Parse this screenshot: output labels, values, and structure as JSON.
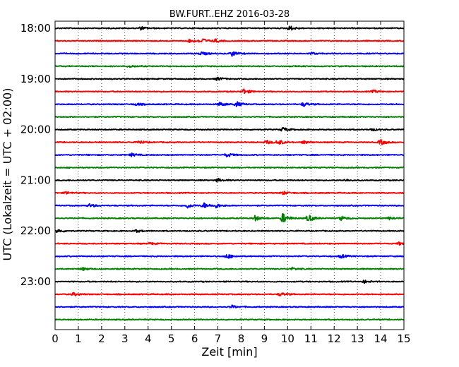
{
  "chart_data": {
    "type": "line",
    "title": "BW.FURT..EHZ 2016-03-28",
    "xlabel": "Zeit  [min]",
    "ylabel": "UTC (Lokalzeit = UTC + 02:00)",
    "xlim": [
      0,
      15
    ],
    "x_ticks": [
      "0",
      "1",
      "2",
      "3",
      "4",
      "5",
      "6",
      "7",
      "8",
      "9",
      "10",
      "11",
      "12",
      "13",
      "14",
      "15"
    ],
    "y_tick_labels": [
      "18:00",
      "19:00",
      "20:00",
      "21:00",
      "22:00",
      "23:00"
    ],
    "grid": true,
    "line_colors": [
      "#000000",
      "#ff0000",
      "#0000ff",
      "#008000"
    ],
    "traces": [
      {
        "start": "18:00",
        "color": "#000000",
        "events": [
          {
            "t": 3.7,
            "amp": 0.3
          },
          {
            "t": 10.1,
            "amp": 0.45
          }
        ]
      },
      {
        "start": "18:15",
        "color": "#ff0000",
        "events": [
          {
            "t": 5.8,
            "amp": 0.4
          },
          {
            "t": 6.3,
            "amp": 0.55
          },
          {
            "t": 6.9,
            "amp": 0.3
          }
        ]
      },
      {
        "start": "18:30",
        "color": "#0000ff",
        "events": [
          {
            "t": 6.3,
            "amp": 0.35
          },
          {
            "t": 7.6,
            "amp": 0.5
          },
          {
            "t": 11.0,
            "amp": 0.25
          }
        ]
      },
      {
        "start": "18:45",
        "color": "#008000",
        "events": [
          {
            "t": 3.2,
            "amp": 0.2
          }
        ]
      },
      {
        "start": "19:00",
        "color": "#000000",
        "events": [
          {
            "t": 7.0,
            "amp": 0.35
          }
        ]
      },
      {
        "start": "19:15",
        "color": "#ff0000",
        "events": [
          {
            "t": 8.1,
            "amp": 0.55
          },
          {
            "t": 13.7,
            "amp": 0.25
          }
        ]
      },
      {
        "start": "19:30",
        "color": "#0000ff",
        "events": [
          {
            "t": 3.5,
            "amp": 0.25
          },
          {
            "t": 7.1,
            "amp": 0.4
          },
          {
            "t": 7.8,
            "amp": 0.5
          },
          {
            "t": 10.7,
            "amp": 0.4
          }
        ]
      },
      {
        "start": "19:45",
        "color": "#008000",
        "events": []
      },
      {
        "start": "20:00",
        "color": "#000000",
        "events": [
          {
            "t": 9.8,
            "amp": 0.4
          },
          {
            "t": 13.6,
            "amp": 0.25
          }
        ]
      },
      {
        "start": "20:15",
        "color": "#ff0000",
        "events": [
          {
            "t": 3.6,
            "amp": 0.35
          },
          {
            "t": 9.1,
            "amp": 0.35
          },
          {
            "t": 9.6,
            "amp": 0.5
          },
          {
            "t": 10.7,
            "amp": 0.3
          },
          {
            "t": 14.0,
            "amp": 0.55
          }
        ]
      },
      {
        "start": "20:30",
        "color": "#0000ff",
        "events": [
          {
            "t": 3.3,
            "amp": 0.3
          },
          {
            "t": 7.4,
            "amp": 0.4
          }
        ]
      },
      {
        "start": "20:45",
        "color": "#008000",
        "events": []
      },
      {
        "start": "21:00",
        "color": "#000000",
        "events": [
          {
            "t": 7.0,
            "amp": 0.3
          },
          {
            "t": 12.5,
            "amp": 0.2
          }
        ]
      },
      {
        "start": "21:15",
        "color": "#ff0000",
        "events": [
          {
            "t": 0.5,
            "amp": 0.25
          },
          {
            "t": 9.8,
            "amp": 0.3
          }
        ]
      },
      {
        "start": "21:30",
        "color": "#0000ff",
        "events": [
          {
            "t": 1.5,
            "amp": 0.35
          },
          {
            "t": 5.7,
            "amp": 0.45
          },
          {
            "t": 6.4,
            "amp": 0.5
          },
          {
            "t": 6.9,
            "amp": 0.4
          }
        ]
      },
      {
        "start": "21:45",
        "color": "#008000",
        "events": [
          {
            "t": 8.6,
            "amp": 0.5
          },
          {
            "t": 9.8,
            "amp": 1.0
          },
          {
            "t": 10.9,
            "amp": 0.7
          },
          {
            "t": 12.3,
            "amp": 0.4
          },
          {
            "t": 14.4,
            "amp": 0.3
          }
        ]
      },
      {
        "start": "22:00",
        "color": "#000000",
        "events": [
          {
            "t": 0.1,
            "amp": 0.35
          },
          {
            "t": 3.5,
            "amp": 0.25
          }
        ]
      },
      {
        "start": "22:15",
        "color": "#ff0000",
        "events": [
          {
            "t": 4.1,
            "amp": 0.2
          },
          {
            "t": 14.8,
            "amp": 0.25
          }
        ]
      },
      {
        "start": "22:30",
        "color": "#0000ff",
        "events": [
          {
            "t": 7.4,
            "amp": 0.45
          },
          {
            "t": 12.3,
            "amp": 0.35
          }
        ]
      },
      {
        "start": "22:45",
        "color": "#008000",
        "events": [
          {
            "t": 1.2,
            "amp": 0.25
          },
          {
            "t": 10.2,
            "amp": 0.25
          }
        ]
      },
      {
        "start": "23:00",
        "color": "#000000",
        "events": [
          {
            "t": 13.3,
            "amp": 0.25
          }
        ]
      },
      {
        "start": "23:15",
        "color": "#ff0000",
        "events": [
          {
            "t": 0.8,
            "amp": 0.3
          },
          {
            "t": 9.7,
            "amp": 0.35
          }
        ]
      },
      {
        "start": "23:30",
        "color": "#0000ff",
        "events": [
          {
            "t": 7.6,
            "amp": 0.3
          }
        ]
      },
      {
        "start": "23:45",
        "color": "#008000",
        "events": []
      }
    ]
  }
}
